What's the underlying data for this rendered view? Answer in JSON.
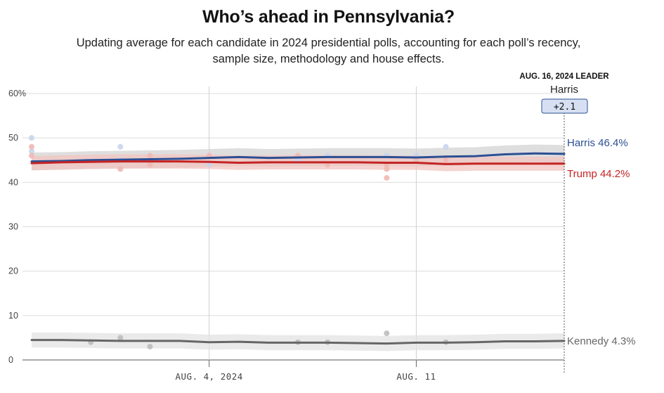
{
  "header": {
    "title": "Who’s ahead in Pennsylvania?",
    "subtitle": "Updating average for each candidate in 2024 presidential polls, accounting for each poll’s recency, sample size, methodology and house effects."
  },
  "leader_box": {
    "date_label": "AUG. 16, 2024 LEADER",
    "name": "Harris",
    "margin": "+2.1"
  },
  "chart_data": {
    "type": "line",
    "title": "Who’s ahead in Pennsylvania?",
    "x_dates": [
      "Jul 29",
      "Jul 30",
      "Jul 31",
      "Aug 1",
      "Aug 2",
      "Aug 3",
      "Aug 4",
      "Aug 5",
      "Aug 6",
      "Aug 7",
      "Aug 8",
      "Aug 9",
      "Aug 10",
      "Aug 11",
      "Aug 12",
      "Aug 13",
      "Aug 14",
      "Aug 15",
      "Aug 16"
    ],
    "x_ticks": [
      "AUG. 4, 2024",
      "AUG. 11"
    ],
    "y_ticks": [
      "60%",
      "50",
      "40",
      "30",
      "20",
      "10",
      "0"
    ],
    "ylim": [
      0,
      60
    ],
    "grid": true,
    "series": [
      {
        "name": "Harris",
        "end_label": "Harris 46.4%",
        "color": "#2c4f94",
        "band_color": "#d3d3d3",
        "values": [
          44.7,
          44.8,
          45.0,
          45.1,
          45.2,
          45.3,
          45.5,
          45.7,
          45.5,
          45.6,
          45.7,
          45.7,
          45.7,
          45.6,
          45.8,
          45.9,
          46.3,
          46.5,
          46.4
        ],
        "band": [
          2.0,
          2.0,
          2.0,
          2.0,
          2.0,
          2.0,
          2.0,
          2.0,
          2.0,
          2.0,
          2.0,
          2.0,
          2.0,
          2.0,
          2.0,
          2.0,
          2.0,
          2.0,
          2.0
        ],
        "polls": [
          [
            0,
            50
          ],
          [
            0,
            47
          ],
          [
            3,
            45
          ],
          [
            3,
            48
          ],
          [
            4,
            45
          ],
          [
            6,
            44
          ],
          [
            9,
            45
          ],
          [
            10,
            46
          ],
          [
            12,
            46
          ],
          [
            13,
            45
          ],
          [
            13,
            46
          ],
          [
            14,
            48
          ]
        ]
      },
      {
        "name": "Trump",
        "end_label": "Trump 44.2%",
        "color": "#c42424",
        "band_color": "#f2c4c0",
        "values": [
          44.3,
          44.5,
          44.6,
          44.7,
          44.7,
          44.7,
          44.6,
          44.4,
          44.5,
          44.5,
          44.5,
          44.5,
          44.4,
          44.4,
          44.1,
          44.2,
          44.2,
          44.2,
          44.2
        ],
        "band": [
          1.6,
          1.6,
          1.6,
          1.6,
          1.6,
          1.6,
          1.6,
          1.6,
          1.6,
          1.6,
          1.6,
          1.6,
          1.6,
          1.6,
          1.6,
          1.6,
          1.6,
          1.6,
          1.6
        ],
        "polls": [
          [
            0,
            48
          ],
          [
            0,
            46
          ],
          [
            3,
            43
          ],
          [
            4,
            46
          ],
          [
            4,
            44
          ],
          [
            6,
            46
          ],
          [
            9,
            46
          ],
          [
            10,
            44
          ],
          [
            12,
            43
          ],
          [
            12,
            41
          ],
          [
            12,
            44
          ],
          [
            13,
            45
          ],
          [
            14,
            45
          ]
        ]
      },
      {
        "name": "Kennedy",
        "end_label": "Kennedy 4.3%",
        "color": "#666666",
        "band_color": "#e3e3e3",
        "values": [
          4.5,
          4.5,
          4.4,
          4.3,
          4.3,
          4.3,
          4.0,
          4.1,
          3.9,
          3.9,
          3.9,
          3.8,
          3.7,
          3.9,
          3.9,
          4.0,
          4.2,
          4.2,
          4.3
        ],
        "band": [
          1.7,
          1.7,
          1.7,
          1.7,
          1.7,
          1.7,
          1.7,
          1.7,
          1.7,
          1.7,
          1.7,
          1.7,
          1.7,
          1.7,
          1.7,
          1.7,
          1.7,
          1.7,
          1.7
        ],
        "polls": [
          [
            2,
            4
          ],
          [
            3,
            5
          ],
          [
            4,
            3
          ],
          [
            9,
            4
          ],
          [
            10,
            4
          ],
          [
            12,
            6
          ],
          [
            14,
            4
          ]
        ]
      }
    ]
  }
}
